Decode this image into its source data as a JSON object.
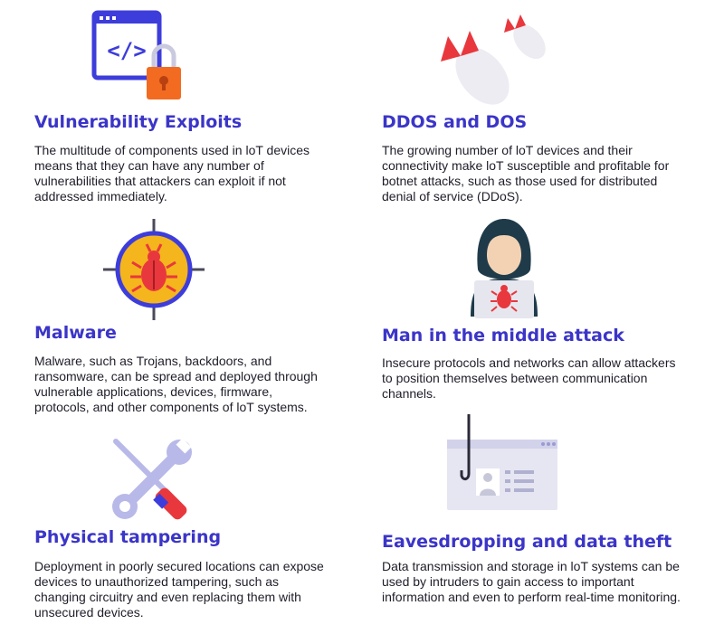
{
  "items": [
    {
      "title": "Vulnerability Exploits",
      "description": "The multitude of components used in loT devices means that they can have any number of vulnerabilities that attackers can exploit if not addressed immediately.",
      "icon": "code-window-lock-icon"
    },
    {
      "title": "DDOS and DOS",
      "description": "The growing number of loT devices and their connectivity make loT susceptible and profitable for botnet attacks, such as those used for distributed denial of service (DDoS).",
      "icon": "bombs-icon"
    },
    {
      "title": "Malware",
      "description": "Malware, such as Trojans, backdoors, and ransomware, can be spread and deployed through vulnerable applications, devices, firmware, protocols, and other components of loT systems.",
      "icon": "bug-target-icon"
    },
    {
      "title": "Man in the middle attack",
      "description": "Insecure protocols and networks can allow attackers to position themselves between communication channels.",
      "icon": "hooded-hacker-icon"
    },
    {
      "title": "Physical tampering",
      "description": "Deployment in poorly secured locations can expose devices to unauthorized tampering, such as changing circuitry and even replacing them with unsecured devices.",
      "icon": "tools-icon"
    },
    {
      "title": "Eavesdropping and data theft",
      "description": "Data transmission and storage in loT systems can be used by intruders to gain access to important information and even to perform real-time monitoring.",
      "icon": "phishing-hook-icon"
    }
  ],
  "colors": {
    "title": "#3b35c8",
    "text": "#1e1e2a",
    "accent_blue": "#3d3ddb",
    "accent_red": "#e8383d",
    "accent_orange": "#f26b21",
    "accent_yellow": "#f5b51c"
  }
}
